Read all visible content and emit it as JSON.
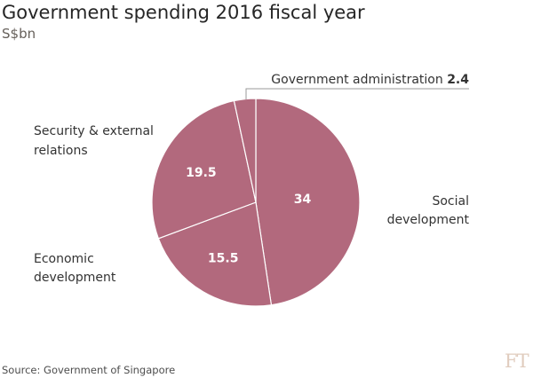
{
  "header": {
    "title": "Government spending 2016 fiscal year",
    "subtitle": "S$bn"
  },
  "footer": {
    "source": "Source: Government of Singapore",
    "logo": "FT"
  },
  "colors": {
    "slice": "#b2697d",
    "slice_stroke": "#ffffff",
    "label_text": "#333333",
    "value_text": "#ffffff",
    "leader_line": "#999999"
  },
  "chart_data": {
    "type": "pie",
    "title": "Government spending 2016 fiscal year",
    "subtitle": "S$bn",
    "start": "12 o'clock",
    "direction": "clockwise",
    "slices": [
      {
        "label": "Social development",
        "value": 34,
        "value_label": "34"
      },
      {
        "label": "Economic development",
        "value": 15.5,
        "value_label": "15.5"
      },
      {
        "label": "Security & external relations",
        "value": 19.5,
        "value_label": "19.5"
      },
      {
        "label": "Government administration",
        "value": 2.4,
        "value_label": "2.4"
      }
    ]
  }
}
